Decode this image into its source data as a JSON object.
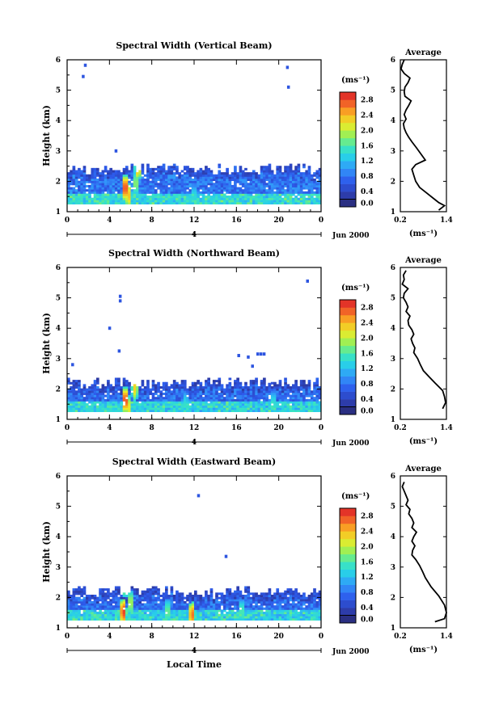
{
  "figure": {
    "xlabel": "Local Time",
    "date_label": "Jun 2000",
    "colorbar_unit": "(ms⁻¹)",
    "profile_xlabel": "(ms⁻¹)"
  },
  "chart_data": [
    {
      "type": "heatmap",
      "title": "Spectral Width (Vertical Beam)",
      "ylabel": "Height (km)",
      "xlabel": "Local Time",
      "x_ticks": [
        "0",
        "4",
        "8",
        "12",
        "16",
        "20",
        "0"
      ],
      "date_axis_ticks": [
        "4"
      ],
      "date_label": "Jun 2000",
      "y_ticks": [
        "1",
        "2",
        "3",
        "4",
        "5",
        "6"
      ],
      "xlim": [
        0,
        24
      ],
      "ylim": [
        1,
        6
      ],
      "colorbar": {
        "label": "(ms⁻¹)",
        "ticks": [
          "0.0",
          "0.4",
          "0.8",
          "1.2",
          "1.6",
          "2.0",
          "2.4",
          "2.8"
        ],
        "range": [
          0,
          3.0
        ]
      },
      "data_top_km": 2.55,
      "base_value": 0.8,
      "isolated_points": [
        [
          1.7,
          5.82
        ],
        [
          1.5,
          5.45
        ],
        [
          4.6,
          3.0
        ],
        [
          20.8,
          5.75
        ],
        [
          20.9,
          5.1
        ]
      ],
      "hotspots": [
        [
          5.5,
          1.75,
          2.9
        ],
        [
          5.8,
          1.5,
          2.4
        ],
        [
          6.7,
          2.45,
          2.6
        ],
        [
          6.5,
          1.9,
          1.9
        ],
        [
          12.0,
          1.45,
          1.5
        ]
      ],
      "profile": {
        "title": "Average",
        "xlim": [
          0.2,
          1.4
        ],
        "ylim": [
          1,
          6
        ],
        "x_ticks": [
          "0.2",
          "1.4"
        ],
        "y_ticks": [
          "1",
          "2",
          "3",
          "4",
          "5",
          "6"
        ],
        "xlabel": "(ms⁻¹)",
        "x": [
          0.3,
          0.25,
          0.22,
          0.3,
          0.45,
          0.4,
          0.32,
          0.3,
          0.32,
          0.48,
          0.42,
          0.35,
          0.3,
          0.35,
          0.28,
          0.3,
          0.35,
          0.42,
          0.5,
          0.62,
          0.85,
          0.6,
          0.5,
          0.55,
          0.6,
          0.7,
          0.9,
          1.1,
          1.2,
          1.35,
          1.2
        ],
        "y": [
          6.0,
          5.85,
          5.7,
          5.55,
          5.4,
          5.25,
          5.1,
          4.95,
          4.8,
          4.65,
          4.5,
          4.35,
          4.2,
          4.05,
          3.9,
          3.75,
          3.6,
          3.45,
          3.3,
          3.1,
          2.7,
          2.55,
          2.4,
          2.2,
          2.0,
          1.8,
          1.6,
          1.4,
          1.3,
          1.2,
          1.05
        ]
      }
    },
    {
      "type": "heatmap",
      "title": "Spectral Width (Northward Beam)",
      "ylabel": "Height (km)",
      "xlabel": "Local Time",
      "x_ticks": [
        "0",
        "4",
        "8",
        "12",
        "16",
        "20",
        "0"
      ],
      "date_axis_ticks": [
        "4"
      ],
      "date_label": "Jun 2000",
      "y_ticks": [
        "1",
        "2",
        "3",
        "4",
        "5",
        "6"
      ],
      "xlim": [
        0,
        24
      ],
      "ylim": [
        1,
        6
      ],
      "colorbar": {
        "label": "(ms⁻¹)",
        "ticks": [
          "0.0",
          "0.4",
          "0.8",
          "1.2",
          "1.6",
          "2.0",
          "2.4",
          "2.8"
        ],
        "range": [
          0,
          3.0
        ]
      },
      "data_top_km": 2.35,
      "base_value": 0.75,
      "isolated_points": [
        [
          4.0,
          4.0
        ],
        [
          5.0,
          5.05
        ],
        [
          5.0,
          4.9
        ],
        [
          4.9,
          3.25
        ],
        [
          0.5,
          2.8
        ],
        [
          16.2,
          3.1
        ],
        [
          17.1,
          3.05
        ],
        [
          17.5,
          2.75
        ],
        [
          18.0,
          3.15
        ],
        [
          18.3,
          3.15
        ],
        [
          18.6,
          3.15
        ],
        [
          19.1,
          2.15
        ],
        [
          22.7,
          5.55
        ]
      ],
      "hotspots": [
        [
          5.5,
          1.6,
          2.9
        ],
        [
          5.8,
          1.35,
          2.2
        ],
        [
          6.4,
          2.0,
          2.3
        ],
        [
          11.2,
          1.5,
          1.4
        ],
        [
          19.5,
          1.5,
          1.5
        ]
      ],
      "profile": {
        "title": "Average",
        "xlim": [
          0.2,
          1.4
        ],
        "ylim": [
          1,
          6
        ],
        "x_ticks": [
          "0.2",
          "1.4"
        ],
        "y_ticks": [
          "1",
          "2",
          "3",
          "4",
          "5",
          "6"
        ],
        "xlabel": "(ms⁻¹)",
        "x": [
          0.35,
          0.28,
          0.3,
          0.25,
          0.4,
          0.3,
          0.28,
          0.35,
          0.4,
          0.35,
          0.45,
          0.4,
          0.42,
          0.5,
          0.55,
          0.48,
          0.52,
          0.58,
          0.55,
          0.65,
          0.72,
          0.8,
          0.95,
          1.1,
          1.3,
          1.35,
          1.38,
          1.3
        ],
        "y": [
          5.9,
          5.75,
          5.6,
          5.45,
          5.3,
          5.15,
          5.0,
          4.85,
          4.7,
          4.55,
          4.4,
          4.25,
          4.1,
          3.95,
          3.8,
          3.65,
          3.5,
          3.35,
          3.2,
          3.0,
          2.8,
          2.6,
          2.4,
          2.2,
          1.95,
          1.75,
          1.55,
          1.35
        ]
      }
    },
    {
      "type": "heatmap",
      "title": "Spectral Width (Eastward Beam)",
      "ylabel": "Height (km)",
      "xlabel": "Local Time",
      "x_ticks": [
        "0",
        "4",
        "8",
        "12",
        "16",
        "20",
        "0"
      ],
      "date_axis_ticks": [
        "4"
      ],
      "date_label": "Jun 2000",
      "y_ticks": [
        "1",
        "2",
        "3",
        "4",
        "5",
        "6"
      ],
      "xlim": [
        0,
        24
      ],
      "ylim": [
        1,
        6
      ],
      "colorbar": {
        "label": "(ms⁻¹)",
        "ticks": [
          "0.0",
          "0.4",
          "0.8",
          "1.2",
          "1.6",
          "2.0",
          "2.4",
          "2.8"
        ],
        "range": [
          0,
          3.0
        ]
      },
      "data_top_km": 2.35,
      "base_value": 0.75,
      "isolated_points": [
        [
          12.4,
          5.35
        ],
        [
          15.0,
          3.35
        ],
        [
          1.3,
          1.65
        ]
      ],
      "hotspots": [
        [
          5.3,
          1.5,
          2.9
        ],
        [
          5.5,
          2.4,
          2.3
        ],
        [
          6.0,
          1.8,
          2.0
        ],
        [
          9.5,
          1.5,
          1.8
        ],
        [
          11.8,
          1.4,
          2.7
        ],
        [
          16.5,
          1.5,
          1.7
        ]
      ],
      "profile": {
        "title": "Average",
        "xlim": [
          0.2,
          1.4
        ],
        "ylim": [
          1,
          6
        ],
        "x_ticks": [
          "0.2",
          "1.4"
        ],
        "y_ticks": [
          "1",
          "2",
          "3",
          "4",
          "5",
          "6"
        ],
        "xlabel": "(ms⁻¹)",
        "x": [
          0.3,
          0.25,
          0.3,
          0.35,
          0.4,
          0.35,
          0.45,
          0.42,
          0.5,
          0.55,
          0.5,
          0.62,
          0.55,
          0.5,
          0.58,
          0.52,
          0.5,
          0.6,
          0.7,
          0.78,
          0.85,
          1.0,
          1.2,
          1.35,
          1.4,
          1.35,
          1.1
        ],
        "y": [
          5.8,
          5.65,
          5.5,
          5.35,
          5.2,
          5.05,
          4.9,
          4.75,
          4.6,
          4.45,
          4.3,
          4.15,
          4.0,
          3.85,
          3.7,
          3.55,
          3.4,
          3.25,
          3.05,
          2.85,
          2.65,
          2.35,
          2.05,
          1.75,
          1.5,
          1.3,
          1.2
        ]
      }
    }
  ]
}
